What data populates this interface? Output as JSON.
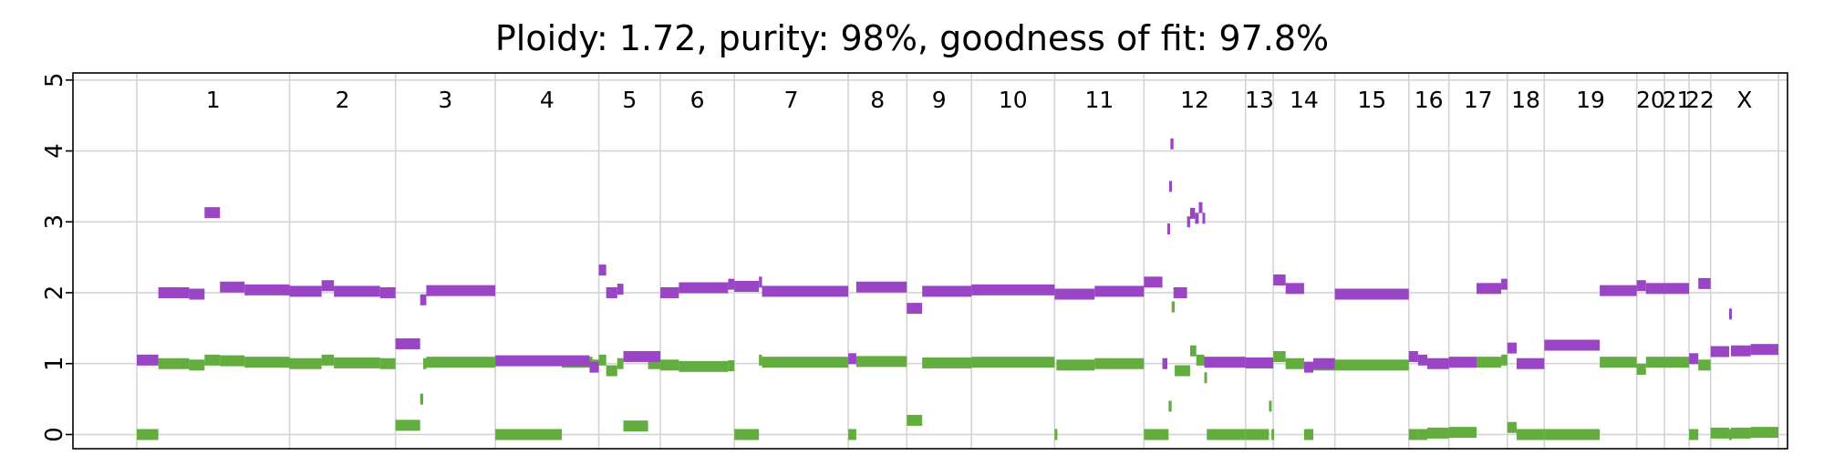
{
  "chart_data": {
    "type": "scatter",
    "title": "Ploidy: 1.72, purity: 98%, goodness of fit: 97.8%",
    "xlabel": "",
    "ylabel": "",
    "ylim": [
      -0.2,
      5.1
    ],
    "yticks": [
      "0",
      "1",
      "2",
      "3",
      "4",
      "5"
    ],
    "grid": true,
    "legend": "none",
    "chromosomes": [
      {
        "name": "1",
        "start": 0,
        "end": 248
      },
      {
        "name": "2",
        "start": 248,
        "end": 420
      },
      {
        "name": "3",
        "start": 420,
        "end": 582
      },
      {
        "name": "4",
        "start": 582,
        "end": 750
      },
      {
        "name": "5",
        "start": 750,
        "end": 850
      },
      {
        "name": "6",
        "start": 850,
        "end": 970
      },
      {
        "name": "7",
        "start": 970,
        "end": 1155
      },
      {
        "name": "8",
        "start": 1155,
        "end": 1250
      },
      {
        "name": "9",
        "start": 1250,
        "end": 1355
      },
      {
        "name": "10",
        "start": 1355,
        "end": 1490
      },
      {
        "name": "11",
        "start": 1490,
        "end": 1635
      },
      {
        "name": "12",
        "start": 1635,
        "end": 1800
      },
      {
        "name": "13",
        "start": 1800,
        "end": 1845
      },
      {
        "name": "14",
        "start": 1845,
        "end": 1945
      },
      {
        "name": "15",
        "start": 1945,
        "end": 2065
      },
      {
        "name": "16",
        "start": 2065,
        "end": 2130
      },
      {
        "name": "17",
        "start": 2130,
        "end": 2225
      },
      {
        "name": "18",
        "start": 2225,
        "end": 2285
      },
      {
        "name": "19",
        "start": 2285,
        "end": 2435
      },
      {
        "name": "20",
        "start": 2435,
        "end": 2480
      },
      {
        "name": "21",
        "start": 2480,
        "end": 2520
      },
      {
        "name": "22",
        "start": 2520,
        "end": 2555
      },
      {
        "name": "X",
        "start": 2555,
        "end": 2665
      }
    ],
    "series": [
      {
        "key": "major",
        "color": "#9a45c6",
        "segments": [
          [
            0,
            35,
            1.05
          ],
          [
            35,
            85,
            2.0
          ],
          [
            85,
            110,
            1.98
          ],
          [
            110,
            135,
            3.13
          ],
          [
            135,
            175,
            2.08
          ],
          [
            175,
            248,
            2.04
          ],
          [
            248,
            300,
            2.02
          ],
          [
            300,
            320,
            2.1
          ],
          [
            320,
            395,
            2.02
          ],
          [
            395,
            420,
            2.0
          ],
          [
            420,
            460,
            1.28
          ],
          [
            460,
            470,
            1.9
          ],
          [
            470,
            582,
            2.03
          ],
          [
            582,
            735,
            1.04
          ],
          [
            735,
            750,
            0.95
          ],
          [
            750,
            762,
            2.32
          ],
          [
            762,
            780,
            2.0
          ],
          [
            780,
            790,
            2.05
          ],
          [
            790,
            850,
            1.1
          ],
          [
            850,
            880,
            2.0
          ],
          [
            880,
            960,
            2.07
          ],
          [
            960,
            970,
            2.12
          ],
          [
            970,
            1010,
            2.09
          ],
          [
            1010,
            1015,
            2.15
          ],
          [
            1015,
            1155,
            2.02
          ],
          [
            1155,
            1168,
            1.07
          ],
          [
            1168,
            1250,
            2.08
          ],
          [
            1250,
            1275,
            1.78
          ],
          [
            1275,
            1355,
            2.02
          ],
          [
            1355,
            1490,
            2.04
          ],
          [
            1490,
            1555,
            1.98
          ],
          [
            1555,
            1635,
            2.02
          ],
          [
            1635,
            1665,
            2.15
          ],
          [
            1665,
            1673,
            1.0
          ],
          [
            1673,
            1676,
            2.9
          ],
          [
            1676,
            1678,
            3.5
          ],
          [
            1678,
            1683,
            4.1
          ],
          [
            1683,
            1705,
            2.0
          ],
          [
            1705,
            1710,
            3.0
          ],
          [
            1710,
            1718,
            3.12
          ],
          [
            1718,
            1724,
            3.05
          ],
          [
            1724,
            1730,
            3.2
          ],
          [
            1730,
            1733,
            3.05
          ],
          [
            1733,
            1750,
            1.02
          ],
          [
            1750,
            1800,
            1.02
          ],
          [
            1800,
            1845,
            1.01
          ],
          [
            1845,
            1865,
            2.18
          ],
          [
            1865,
            1895,
            2.06
          ],
          [
            1895,
            1910,
            0.95
          ],
          [
            1910,
            1945,
            1.0
          ],
          [
            1945,
            2065,
            1.98
          ],
          [
            2065,
            2080,
            1.1
          ],
          [
            2080,
            2095,
            1.05
          ],
          [
            2095,
            2130,
            1.0
          ],
          [
            2130,
            2175,
            1.02
          ],
          [
            2175,
            2215,
            2.06
          ],
          [
            2215,
            2225,
            2.12
          ],
          [
            2225,
            2240,
            1.22
          ],
          [
            2240,
            2285,
            1.0
          ],
          [
            2285,
            2375,
            1.26
          ],
          [
            2375,
            2435,
            2.03
          ],
          [
            2435,
            2450,
            2.1
          ],
          [
            2450,
            2480,
            2.06
          ],
          [
            2480,
            2520,
            2.06
          ],
          [
            2520,
            2535,
            1.07
          ],
          [
            2535,
            2555,
            2.13
          ],
          [
            2555,
            2585,
            1.17
          ],
          [
            2585,
            2588,
            1.7
          ],
          [
            2588,
            2620,
            1.18
          ],
          [
            2620,
            2665,
            1.2
          ]
        ]
      },
      {
        "key": "minor",
        "color": "#62ad3e",
        "segments": [
          [
            0,
            35,
            0.0
          ],
          [
            35,
            85,
            1.0
          ],
          [
            85,
            110,
            0.98
          ],
          [
            110,
            135,
            1.05
          ],
          [
            135,
            175,
            1.04
          ],
          [
            175,
            248,
            1.02
          ],
          [
            248,
            300,
            1.0
          ],
          [
            300,
            320,
            1.05
          ],
          [
            320,
            395,
            1.01
          ],
          [
            395,
            420,
            1.0
          ],
          [
            420,
            460,
            0.13
          ],
          [
            460,
            465,
            0.5
          ],
          [
            465,
            470,
            1.0
          ],
          [
            470,
            582,
            1.02
          ],
          [
            582,
            690,
            0.0
          ],
          [
            690,
            740,
            1.02
          ],
          [
            740,
            750,
            0.98
          ],
          [
            750,
            762,
            1.05
          ],
          [
            762,
            780,
            0.9
          ],
          [
            780,
            790,
            1.0
          ],
          [
            790,
            830,
            0.12
          ],
          [
            830,
            850,
            1.0
          ],
          [
            850,
            880,
            0.98
          ],
          [
            880,
            960,
            0.96
          ],
          [
            960,
            970,
            0.97
          ],
          [
            970,
            1010,
            0.0
          ],
          [
            1010,
            1015,
            1.05
          ],
          [
            1015,
            1155,
            1.02
          ],
          [
            1155,
            1168,
            0.0
          ],
          [
            1168,
            1250,
            1.03
          ],
          [
            1250,
            1275,
            0.2
          ],
          [
            1275,
            1355,
            1.01
          ],
          [
            1355,
            1490,
            1.02
          ],
          [
            1490,
            1493,
            0.0
          ],
          [
            1493,
            1555,
            0.98
          ],
          [
            1555,
            1635,
            1.0
          ],
          [
            1635,
            1675,
            0.0
          ],
          [
            1675,
            1680,
            0.4
          ],
          [
            1680,
            1685,
            1.8
          ],
          [
            1685,
            1710,
            0.9
          ],
          [
            1710,
            1720,
            1.18
          ],
          [
            1720,
            1733,
            1.05
          ],
          [
            1733,
            1737,
            0.8
          ],
          [
            1737,
            1800,
            0.0
          ],
          [
            1800,
            1838,
            0.0
          ],
          [
            1838,
            1842,
            0.4
          ],
          [
            1842,
            1845,
            0.0
          ],
          [
            1845,
            1865,
            1.1
          ],
          [
            1865,
            1895,
            1.0
          ],
          [
            1895,
            1910,
            0.0
          ],
          [
            1910,
            1945,
            0.98
          ],
          [
            1945,
            2065,
            0.98
          ],
          [
            2065,
            2080,
            0.0
          ],
          [
            2080,
            2095,
            0.0
          ],
          [
            2095,
            2130,
            0.02
          ],
          [
            2130,
            2175,
            0.03
          ],
          [
            2175,
            2215,
            1.02
          ],
          [
            2215,
            2225,
            1.05
          ],
          [
            2225,
            2240,
            0.1
          ],
          [
            2240,
            2285,
            0.0
          ],
          [
            2285,
            2375,
            0.0
          ],
          [
            2375,
            2435,
            1.02
          ],
          [
            2435,
            2450,
            0.92
          ],
          [
            2450,
            2480,
            1.02
          ],
          [
            2480,
            2520,
            1.02
          ],
          [
            2520,
            2535,
            0.0
          ],
          [
            2535,
            2555,
            0.98
          ],
          [
            2555,
            2585,
            0.02
          ],
          [
            2585,
            2588,
            0.0
          ],
          [
            2588,
            2620,
            0.02
          ],
          [
            2620,
            2665,
            0.03
          ]
        ]
      }
    ]
  }
}
